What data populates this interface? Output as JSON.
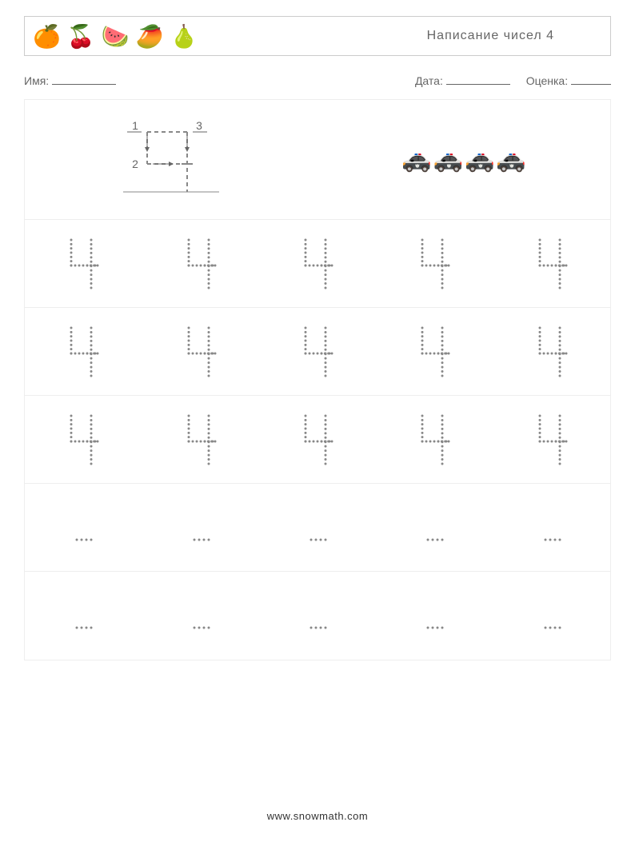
{
  "header": {
    "title": "Написание чисел 4",
    "fruits": [
      "orange",
      "cherries",
      "watermelon",
      "mango",
      "pear"
    ]
  },
  "info": {
    "name_label": "Имя:",
    "date_label": "Дата:",
    "score_label": "Оценка:"
  },
  "worksheet": {
    "number": 4,
    "guide": {
      "stroke_labels": [
        "1",
        "2",
        "3"
      ],
      "stroke_count": 3
    },
    "example_objects": {
      "type": "police-car",
      "count": 4,
      "emoji": "🚓"
    },
    "trace_rows": {
      "full_trace_rows": 3,
      "blank_rows": 2,
      "cells_per_row": 5
    },
    "colors": {
      "dot": "#888888",
      "border": "#eeeeee",
      "text": "#666666",
      "baseline": "#888888"
    }
  },
  "footer": {
    "url": "www.snowmath.com"
  }
}
